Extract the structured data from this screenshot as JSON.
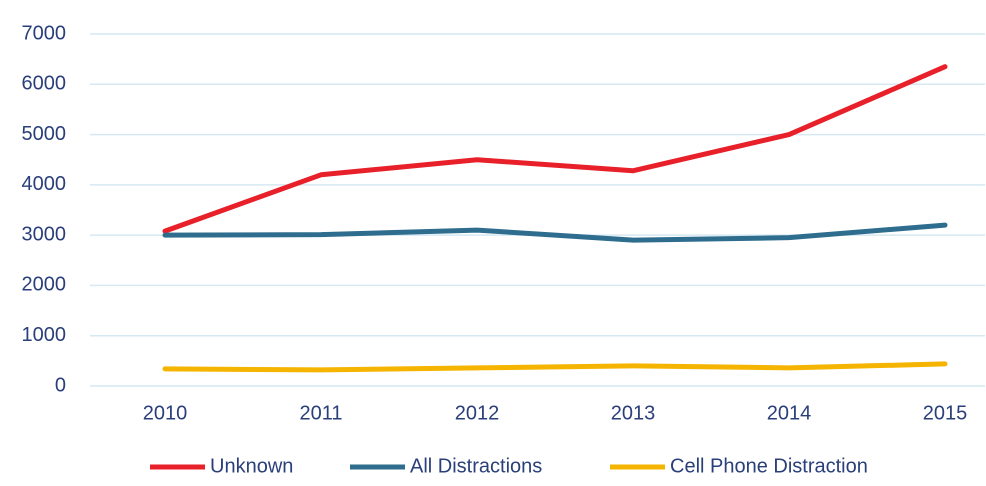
{
  "chart_data": {
    "type": "line",
    "categories": [
      "2010",
      "2011",
      "2012",
      "2013",
      "2014",
      "2015"
    ],
    "series": [
      {
        "name": "Unknown",
        "color": "#e8202a",
        "values": [
          3080,
          4200,
          4500,
          4280,
          5000,
          6350
        ]
      },
      {
        "name": "All Distractions",
        "color": "#2e6d8e",
        "values": [
          3000,
          3010,
          3100,
          2900,
          2950,
          3200
        ]
      },
      {
        "name": "Cell Phone Distraction",
        "color": "#f5b400",
        "values": [
          340,
          320,
          360,
          400,
          360,
          440
        ]
      }
    ],
    "ylim": [
      0,
      7000
    ],
    "yticks": [
      0,
      1000,
      2000,
      3000,
      4000,
      5000,
      6000,
      7000
    ],
    "grid": true,
    "legend": "bottom"
  }
}
